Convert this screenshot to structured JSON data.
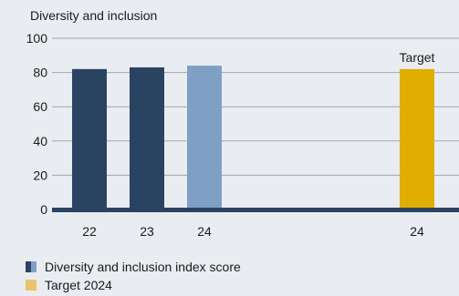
{
  "chart_data": {
    "type": "bar",
    "title": "Diversity and inclusion",
    "xlabel": "",
    "ylabel": "",
    "ylim": [
      0,
      100
    ],
    "yticks": [
      0,
      20,
      40,
      60,
      80,
      100
    ],
    "grid": true,
    "legend_position": "bottom-left",
    "categories": [
      "22",
      "23",
      "24",
      "24"
    ],
    "bars": [
      {
        "category": "22",
        "value": 82,
        "series": "Diversity and inclusion index score",
        "color": "#2a4363"
      },
      {
        "category": "23",
        "value": 83,
        "series": "Diversity and inclusion index score",
        "color": "#2a4363"
      },
      {
        "category": "24",
        "value": 84,
        "series": "Diversity and inclusion index score",
        "color": "#7fa0c5"
      },
      {
        "category": "24",
        "value": 82,
        "series": "Target 2024",
        "color": "#e1ad00",
        "label": "Target"
      }
    ],
    "legend": [
      {
        "name": "Diversity and inclusion index score",
        "colors": [
          "#2a4363",
          "#7fa0c5"
        ]
      },
      {
        "name": "Target 2024",
        "colors": [
          "#e8c56a"
        ]
      }
    ],
    "colors": {
      "background": "#e9ecf1",
      "grid": "#a6a6a6",
      "baseline": "#2a4363"
    }
  }
}
